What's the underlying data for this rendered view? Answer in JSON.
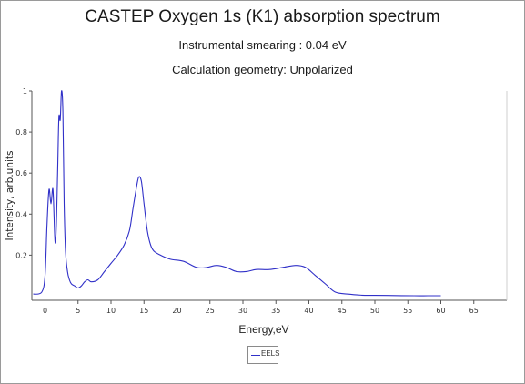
{
  "chart_data": {
    "type": "line",
    "title": "CASTEP Oxygen 1s (K1) absorption spectrum",
    "subtitles": [
      "Instrumental smearing : 0.04 eV",
      "Calculation geometry: Unpolarized"
    ],
    "xlabel": "Energy,eV",
    "ylabel": "Intensity, arb.units",
    "xlim": [
      -2,
      70
    ],
    "ylim": [
      -0.02,
      1.0
    ],
    "xticks": [
      0,
      5,
      10,
      15,
      20,
      25,
      30,
      35,
      40,
      45,
      50,
      55,
      60,
      65
    ],
    "yticks": [
      0.2,
      0.4,
      0.6,
      0.8,
      1
    ],
    "legend_position": "bottom-center",
    "grid": false,
    "series": [
      {
        "name": "EELS",
        "color": "#3030c8",
        "x": [
          -1.8,
          -0.5,
          0,
          0.3,
          0.6,
          0.9,
          1.2,
          1.5,
          1.7,
          1.9,
          2.1,
          2.3,
          2.5,
          2.7,
          2.9,
          3.1,
          3.4,
          3.7,
          4.0,
          4.5,
          5.0,
          5.5,
          6.0,
          6.5,
          7.0,
          8.0,
          9.0,
          10.0,
          11.0,
          12.0,
          12.8,
          13.3,
          13.8,
          14.2,
          14.6,
          15.0,
          15.5,
          16.0,
          16.5,
          17.5,
          19.0,
          21.0,
          23.0,
          24.5,
          26.0,
          27.5,
          29.0,
          30.5,
          32.0,
          34.0,
          36.0,
          38.0,
          39.5,
          41.0,
          42.5,
          44.0,
          46.0,
          48.0,
          50.0,
          53.0,
          56.0,
          58.0,
          60.0
        ],
        "y": [
          0.01,
          0.02,
          0.1,
          0.35,
          0.52,
          0.45,
          0.52,
          0.27,
          0.33,
          0.6,
          0.87,
          0.86,
          1.0,
          0.9,
          0.45,
          0.22,
          0.12,
          0.08,
          0.06,
          0.05,
          0.04,
          0.05,
          0.07,
          0.08,
          0.07,
          0.08,
          0.12,
          0.16,
          0.2,
          0.25,
          0.32,
          0.42,
          0.52,
          0.58,
          0.56,
          0.45,
          0.32,
          0.25,
          0.22,
          0.2,
          0.18,
          0.17,
          0.14,
          0.14,
          0.15,
          0.14,
          0.12,
          0.12,
          0.13,
          0.13,
          0.14,
          0.15,
          0.14,
          0.1,
          0.06,
          0.02,
          0.01,
          0.005,
          0.004,
          0.003,
          0.002,
          0.002,
          0.002
        ]
      }
    ]
  }
}
